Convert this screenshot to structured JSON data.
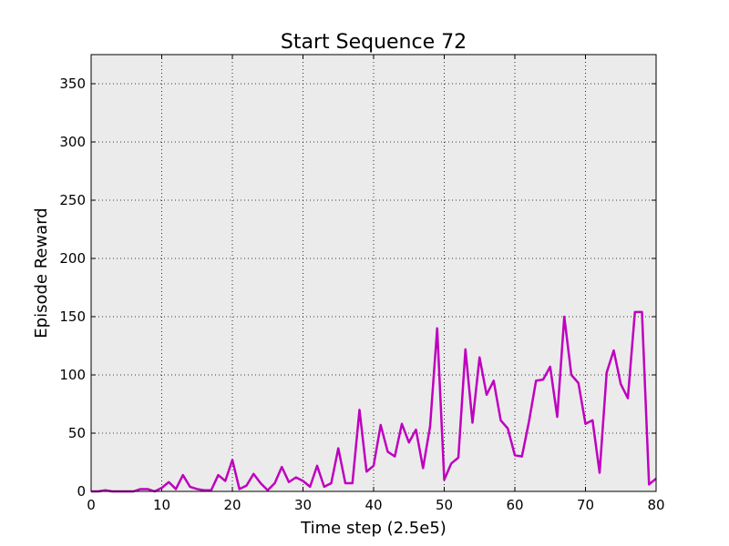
{
  "chart_data": {
    "type": "line",
    "title": "Start Sequence 72",
    "xlabel": "Time step (2.5e5)",
    "ylabel": "Episode Reward",
    "xlim": [
      0,
      80
    ],
    "ylim": [
      0,
      375
    ],
    "xticks": [
      0,
      10,
      20,
      30,
      40,
      50,
      60,
      70,
      80
    ],
    "yticks": [
      0,
      50,
      100,
      150,
      200,
      250,
      300,
      350
    ],
    "grid": true,
    "background_color": "#ebebeb",
    "series": [
      {
        "color": "#bf00bf",
        "x": [
          0,
          1,
          2,
          3,
          4,
          5,
          6,
          7,
          8,
          9,
          10,
          11,
          12,
          13,
          14,
          15,
          16,
          17,
          18,
          19,
          20,
          21,
          22,
          23,
          24,
          25,
          26,
          27,
          28,
          29,
          30,
          31,
          32,
          33,
          34,
          35,
          36,
          37,
          38,
          39,
          40,
          41,
          42,
          43,
          44,
          45,
          46,
          47,
          48,
          49,
          50,
          51,
          52,
          53,
          54,
          55,
          56,
          57,
          58,
          59,
          60,
          61,
          62,
          63,
          64,
          65,
          66,
          67,
          68,
          69,
          70,
          71,
          72,
          73,
          74,
          75,
          76,
          77,
          78,
          79,
          80
        ],
        "values": [
          0,
          0,
          1,
          0,
          0,
          0,
          0,
          2,
          2,
          0,
          3,
          8,
          2,
          14,
          4,
          2,
          1,
          1,
          14,
          9,
          27,
          2,
          5,
          15,
          7,
          1,
          7,
          21,
          8,
          12,
          9,
          4,
          22,
          4,
          7,
          37,
          7,
          7,
          70,
          17,
          22,
          57,
          34,
          30,
          58,
          42,
          53,
          20,
          56,
          140,
          10,
          24,
          29,
          122,
          59,
          115,
          83,
          95,
          61,
          54,
          31,
          30,
          60,
          95,
          96,
          107,
          64,
          150,
          100,
          93,
          58,
          61,
          16,
          102,
          121,
          92,
          80,
          154,
          154,
          6,
          11
        ]
      }
    ]
  }
}
